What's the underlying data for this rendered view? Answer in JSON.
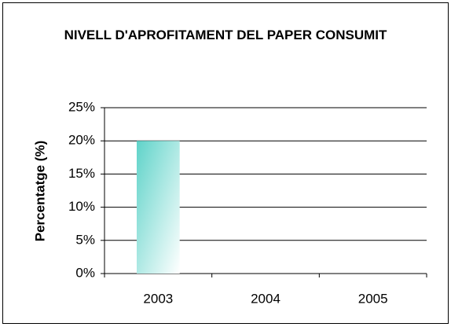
{
  "chart_data": {
    "type": "bar",
    "title": "NIVELL D'APROFITAMENT DEL PAPER CONSUMIT",
    "y_label": "Percentatge (%)",
    "categories": [
      "2003",
      "2004",
      "2005"
    ],
    "values": [
      20,
      0,
      0
    ],
    "color": "#5fd3c9",
    "ylim": [
      0,
      25
    ],
    "yticks": [
      {
        "value": 0,
        "label": "0%"
      },
      {
        "value": 5,
        "label": "5%"
      },
      {
        "value": 10,
        "label": "10%"
      },
      {
        "value": 15,
        "label": "15%"
      },
      {
        "value": 20,
        "label": "20%"
      },
      {
        "value": 25,
        "label": "25%"
      }
    ],
    "grid": true
  }
}
